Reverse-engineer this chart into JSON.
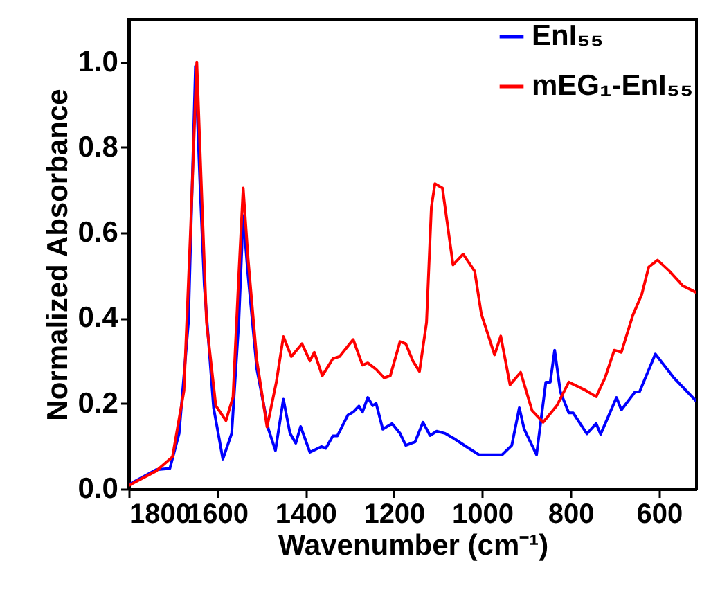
{
  "chart_data": {
    "type": "line",
    "xlabel": "Wavenumber (cm⁻¹)",
    "ylabel": "Normalized Absorbance",
    "xlim": [
      1800,
      515
    ],
    "ylim": [
      0,
      1.1
    ],
    "xticks": [
      1800,
      1600,
      1400,
      1200,
      1000,
      800,
      600
    ],
    "yticks": [
      {
        "value": 0,
        "label": "0.0"
      },
      {
        "value": 0.2,
        "label": "0.2"
      },
      {
        "value": 0.4,
        "label": "0.4"
      },
      {
        "value": 0.6,
        "label": "0.6"
      },
      {
        "value": 0.8,
        "label": "0.8"
      },
      {
        "value": 1,
        "label": "1.0"
      }
    ],
    "grid": false,
    "legend": "top right",
    "line_style": "solid",
    "marker": "none",
    "series": [
      {
        "name": "EnI₅₅",
        "color": "#0000ff",
        "x": [
          1800,
          1738,
          1707,
          1686,
          1665,
          1649,
          1639,
          1629,
          1608,
          1587,
          1567,
          1551,
          1541,
          1530,
          1510,
          1484,
          1468,
          1450,
          1435,
          1422,
          1411,
          1390,
          1364,
          1354,
          1338,
          1328,
          1304,
          1292,
          1279,
          1271,
          1259,
          1248,
          1240,
          1225,
          1204,
          1186,
          1173,
          1152,
          1134,
          1118,
          1103,
          1084,
          1064,
          1033,
          1007,
          955,
          933,
          916,
          905,
          877,
          856,
          846,
          836,
          823,
          804,
          794,
          763,
          742,
          732,
          696,
          685,
          654,
          644,
          608,
          566,
          515
        ],
        "values": [
          0.01,
          0.045,
          0.048,
          0.13,
          0.39,
          0.99,
          0.72,
          0.476,
          0.19,
          0.07,
          0.13,
          0.39,
          0.64,
          0.5,
          0.28,
          0.14,
          0.09,
          0.21,
          0.13,
          0.107,
          0.146,
          0.086,
          0.099,
          0.095,
          0.124,
          0.124,
          0.173,
          0.18,
          0.194,
          0.18,
          0.214,
          0.195,
          0.2,
          0.14,
          0.153,
          0.13,
          0.102,
          0.11,
          0.156,
          0.125,
          0.135,
          0.13,
          0.118,
          0.097,
          0.08,
          0.08,
          0.102,
          0.19,
          0.14,
          0.08,
          0.25,
          0.25,
          0.325,
          0.227,
          0.178,
          0.178,
          0.129,
          0.153,
          0.128,
          0.214,
          0.185,
          0.227,
          0.227,
          0.316,
          0.26,
          0.205
        ]
      },
      {
        "name": "mEG₁-EnI₅₅",
        "color": "#ff0000",
        "x": [
          1800,
          1738,
          1701,
          1675,
          1660,
          1646,
          1636,
          1624,
          1603,
          1580,
          1564,
          1551,
          1541,
          1530,
          1510,
          1487,
          1466,
          1450,
          1432,
          1408,
          1390,
          1380,
          1362,
          1338,
          1323,
          1292,
          1271,
          1259,
          1240,
          1222,
          1208,
          1186,
          1173,
          1157,
          1142,
          1126,
          1115,
          1107,
          1090,
          1066,
          1043,
          1017,
          1002,
          972,
          958,
          937,
          913,
          887,
          862,
          831,
          804,
          768,
          742,
          722,
          701,
          685,
          659,
          639,
          623,
          603,
          576,
          546,
          515
        ],
        "values": [
          0.008,
          0.042,
          0.075,
          0.23,
          0.61,
          1.0,
          0.72,
          0.39,
          0.195,
          0.16,
          0.215,
          0.5,
          0.705,
          0.54,
          0.3,
          0.145,
          0.25,
          0.357,
          0.31,
          0.34,
          0.3,
          0.32,
          0.265,
          0.305,
          0.31,
          0.35,
          0.29,
          0.295,
          0.28,
          0.26,
          0.265,
          0.345,
          0.34,
          0.3,
          0.275,
          0.39,
          0.66,
          0.715,
          0.705,
          0.525,
          0.55,
          0.51,
          0.41,
          0.314,
          0.358,
          0.244,
          0.273,
          0.183,
          0.156,
          0.195,
          0.25,
          0.232,
          0.216,
          0.26,
          0.325,
          0.32,
          0.407,
          0.455,
          0.52,
          0.536,
          0.51,
          0.476,
          0.46
        ]
      }
    ]
  }
}
